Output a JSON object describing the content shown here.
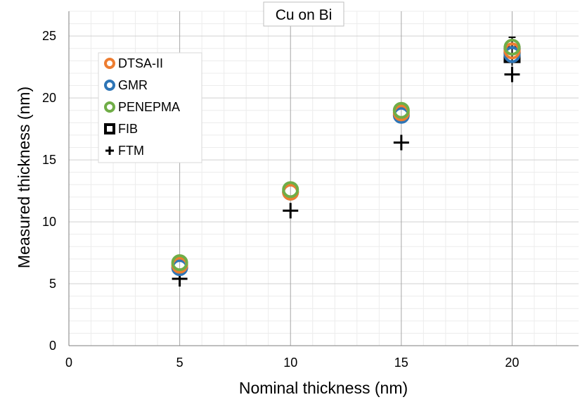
{
  "chart_data": {
    "type": "scatter",
    "title": "Cu on Bi",
    "xlabel": "Nominal thickness (nm)",
    "ylabel": "Measured thickness (nm)",
    "xlim": [
      0,
      23
    ],
    "ylim": [
      0,
      27
    ],
    "x_ticks": [
      0,
      5,
      10,
      15,
      20
    ],
    "y_ticks": [
      0,
      5,
      10,
      15,
      20,
      25
    ],
    "x_tick_labels": [
      "0",
      "5",
      "10",
      "15",
      "20"
    ],
    "y_tick_labels": [
      "0",
      "5",
      "10",
      "15",
      "20",
      "25"
    ],
    "x_minor_step": 1,
    "y_minor_step": 1,
    "grid": "major vertical and minor gridlines",
    "legend_position": "upper-left",
    "series": [
      {
        "name": "DTSA-II",
        "marker": "circle",
        "color": "#ED7D31",
        "x": [
          5,
          10,
          15,
          20
        ],
        "y": [
          6.5,
          12.4,
          18.8,
          23.8
        ]
      },
      {
        "name": "GMR",
        "marker": "circle",
        "color": "#2E75B6",
        "x": [
          5,
          10,
          15,
          20
        ],
        "y": [
          6.3,
          12.4,
          18.6,
          23.5
        ]
      },
      {
        "name": "PENEPMA",
        "marker": "circle",
        "color": "#70AD47",
        "x": [
          5,
          10,
          15,
          20
        ],
        "y": [
          6.7,
          12.6,
          19.0,
          24.1
        ]
      },
      {
        "name": "FIB",
        "marker": "square",
        "color": "#000000",
        "x": [
          20
        ],
        "y": [
          23.5
        ]
      },
      {
        "name": "FTM",
        "marker": "plus",
        "color": "#000000",
        "x": [
          5,
          10,
          15,
          20
        ],
        "y": [
          5.4,
          10.9,
          16.4,
          21.9
        ]
      }
    ],
    "error_bars": [
      {
        "series": "FIB",
        "x": 20,
        "y_low": 22.6,
        "y_high": 24.9
      }
    ]
  }
}
